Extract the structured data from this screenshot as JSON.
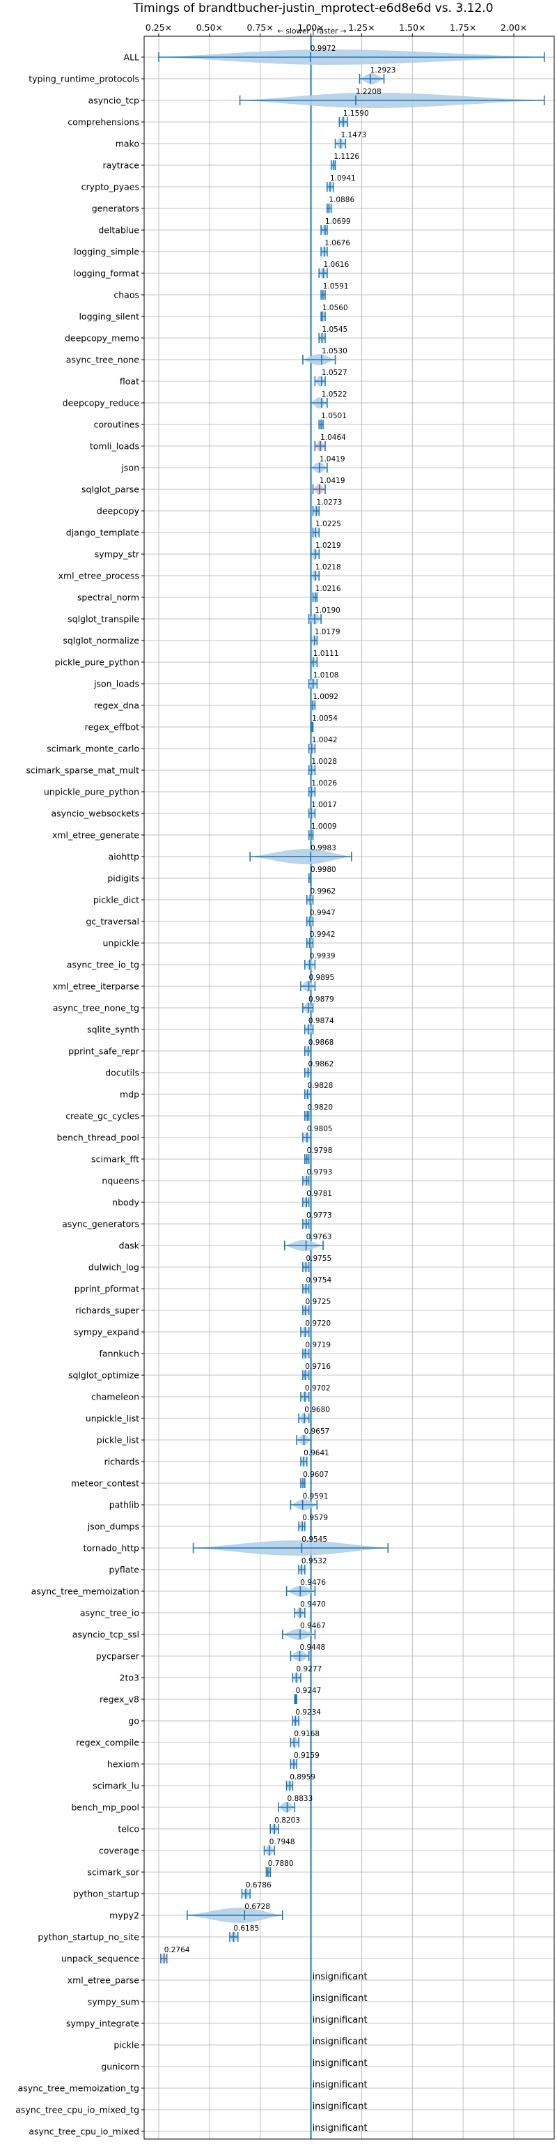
{
  "chart_data": {
    "type": "violin",
    "title": "Timings of brandtbucher-justin_mprotect-e6d8e6d vs. 3.12.0",
    "direction_label": "← slower | faster →",
    "xlim": [
      0.2,
      2.2
    ],
    "x_ticks": [
      {
        "value": 0.25,
        "label": "0.25×"
      },
      {
        "value": 0.5,
        "label": "0.50×"
      },
      {
        "value": 0.75,
        "label": "0.75×"
      },
      {
        "value": 1.0,
        "label": "1.00×"
      },
      {
        "value": 1.25,
        "label": "1.25×"
      },
      {
        "value": 1.5,
        "label": "1.50×"
      },
      {
        "value": 1.75,
        "label": "1.75×"
      },
      {
        "value": 2.0,
        "label": "2.00×"
      }
    ],
    "reference_line": 1.0,
    "insignificant_label": "insignificant",
    "benchmarks": [
      {
        "name": "ALL",
        "value": 0.9972,
        "label": "0.9972",
        "min": 0.25,
        "max": 2.15
      },
      {
        "name": "typing_runtime_protocols",
        "value": 1.2923,
        "label": "1.2923",
        "min": 1.24,
        "max": 1.36
      },
      {
        "name": "asyncio_tcp",
        "value": 1.2208,
        "label": "1.2208",
        "min": 0.65,
        "max": 2.15
      },
      {
        "name": "comprehensions",
        "value": 1.159,
        "label": "1.1590",
        "min": 1.14,
        "max": 1.18
      },
      {
        "name": "mako",
        "value": 1.1473,
        "label": "1.1473",
        "min": 1.12,
        "max": 1.17
      },
      {
        "name": "raytrace",
        "value": 1.1126,
        "label": "1.1126",
        "min": 1.1,
        "max": 1.12
      },
      {
        "name": "crypto_pyaes",
        "value": 1.0941,
        "label": "1.0941",
        "min": 1.08,
        "max": 1.11
      },
      {
        "name": "generators",
        "value": 1.0886,
        "label": "1.0886",
        "min": 1.08,
        "max": 1.1
      },
      {
        "name": "deltablue",
        "value": 1.0699,
        "label": "1.0699",
        "min": 1.05,
        "max": 1.08
      },
      {
        "name": "logging_simple",
        "value": 1.0676,
        "label": "1.0676",
        "min": 1.05,
        "max": 1.08
      },
      {
        "name": "logging_format",
        "value": 1.0616,
        "label": "1.0616",
        "min": 1.04,
        "max": 1.08
      },
      {
        "name": "chaos",
        "value": 1.0591,
        "label": "1.0591",
        "min": 1.05,
        "max": 1.07
      },
      {
        "name": "logging_silent",
        "value": 1.056,
        "label": "1.0560",
        "min": 1.05,
        "max": 1.07
      },
      {
        "name": "deepcopy_memo",
        "value": 1.0545,
        "label": "1.0545",
        "min": 1.04,
        "max": 1.07
      },
      {
        "name": "async_tree_none",
        "value": 1.053,
        "label": "1.0530",
        "min": 0.96,
        "max": 1.12
      },
      {
        "name": "float",
        "value": 1.0527,
        "label": "1.0527",
        "min": 1.02,
        "max": 1.07
      },
      {
        "name": "deepcopy_reduce",
        "value": 1.0522,
        "label": "1.0522",
        "min": 1.0,
        "max": 1.08
      },
      {
        "name": "coroutines",
        "value": 1.0501,
        "label": "1.0501",
        "min": 1.04,
        "max": 1.06
      },
      {
        "name": "tomli_loads",
        "value": 1.0464,
        "label": "1.0464",
        "min": 1.02,
        "max": 1.07
      },
      {
        "name": "json",
        "value": 1.0419,
        "label": "1.0419",
        "min": 1.0,
        "max": 1.08
      },
      {
        "name": "sqlglot_parse",
        "value": 1.0419,
        "label": "1.0419",
        "min": 1.01,
        "max": 1.07
      },
      {
        "name": "deepcopy",
        "value": 1.0273,
        "label": "1.0273",
        "min": 1.01,
        "max": 1.04
      },
      {
        "name": "django_template",
        "value": 1.0225,
        "label": "1.0225",
        "min": 1.01,
        "max": 1.04
      },
      {
        "name": "sympy_str",
        "value": 1.0219,
        "label": "1.0219",
        "min": 1.0,
        "max": 1.04
      },
      {
        "name": "xml_etree_process",
        "value": 1.0218,
        "label": "1.0218",
        "min": 1.0,
        "max": 1.04
      },
      {
        "name": "spectral_norm",
        "value": 1.0216,
        "label": "1.0216",
        "min": 1.01,
        "max": 1.03
      },
      {
        "name": "sqlglot_transpile",
        "value": 1.019,
        "label": "1.0190",
        "min": 0.99,
        "max": 1.05
      },
      {
        "name": "sqlglot_normalize",
        "value": 1.0179,
        "label": "1.0179",
        "min": 1.0,
        "max": 1.03
      },
      {
        "name": "pickle_pure_python",
        "value": 1.0111,
        "label": "1.0111",
        "min": 1.0,
        "max": 1.03
      },
      {
        "name": "json_loads",
        "value": 1.0108,
        "label": "1.0108",
        "min": 0.99,
        "max": 1.03
      },
      {
        "name": "regex_dna",
        "value": 1.0092,
        "label": "1.0092",
        "min": 1.0,
        "max": 1.02
      },
      {
        "name": "regex_effbot",
        "value": 1.0054,
        "label": "1.0054",
        "min": 1.0,
        "max": 1.01
      },
      {
        "name": "scimark_monte_carlo",
        "value": 1.0042,
        "label": "1.0042",
        "min": 0.99,
        "max": 1.02
      },
      {
        "name": "scimark_sparse_mat_mult",
        "value": 1.0028,
        "label": "1.0028",
        "min": 0.99,
        "max": 1.02
      },
      {
        "name": "unpickle_pure_python",
        "value": 1.0026,
        "label": "1.0026",
        "min": 0.99,
        "max": 1.02
      },
      {
        "name": "asyncio_websockets",
        "value": 1.0017,
        "label": "1.0017",
        "min": 0.99,
        "max": 1.02
      },
      {
        "name": "xml_etree_generate",
        "value": 1.0009,
        "label": "1.0009",
        "min": 0.99,
        "max": 1.01
      },
      {
        "name": "aiohttp",
        "value": 0.9983,
        "label": "0.9983",
        "min": 0.7,
        "max": 1.2
      },
      {
        "name": "pidigits",
        "value": 0.998,
        "label": "0.9980",
        "min": 0.99,
        "max": 1.0
      },
      {
        "name": "pickle_dict",
        "value": 0.9962,
        "label": "0.9962",
        "min": 0.98,
        "max": 1.01
      },
      {
        "name": "gc_traversal",
        "value": 0.9947,
        "label": "0.9947",
        "min": 0.98,
        "max": 1.01
      },
      {
        "name": "unpickle",
        "value": 0.9942,
        "label": "0.9942",
        "min": 0.98,
        "max": 1.01
      },
      {
        "name": "async_tree_io_tg",
        "value": 0.9939,
        "label": "0.9939",
        "min": 0.97,
        "max": 1.02
      },
      {
        "name": "xml_etree_iterparse",
        "value": 0.9895,
        "label": "0.9895",
        "min": 0.95,
        "max": 1.02
      },
      {
        "name": "async_tree_none_tg",
        "value": 0.9879,
        "label": "0.9879",
        "min": 0.96,
        "max": 1.01
      },
      {
        "name": "sqlite_synth",
        "value": 0.9874,
        "label": "0.9874",
        "min": 0.97,
        "max": 1.01
      },
      {
        "name": "pprint_safe_repr",
        "value": 0.9868,
        "label": "0.9868",
        "min": 0.97,
        "max": 1.0
      },
      {
        "name": "docutils",
        "value": 0.9862,
        "label": "0.9862",
        "min": 0.97,
        "max": 1.0
      },
      {
        "name": "mdp",
        "value": 0.9828,
        "label": "0.9828",
        "min": 0.97,
        "max": 1.0
      },
      {
        "name": "create_gc_cycles",
        "value": 0.982,
        "label": "0.9820",
        "min": 0.97,
        "max": 0.99
      },
      {
        "name": "bench_thread_pool",
        "value": 0.9805,
        "label": "0.9805",
        "min": 0.96,
        "max": 1.0
      },
      {
        "name": "scimark_fft",
        "value": 0.9798,
        "label": "0.9798",
        "min": 0.97,
        "max": 0.99
      },
      {
        "name": "nqueens",
        "value": 0.9793,
        "label": "0.9793",
        "min": 0.96,
        "max": 0.99
      },
      {
        "name": "nbody",
        "value": 0.9781,
        "label": "0.9781",
        "min": 0.96,
        "max": 0.99
      },
      {
        "name": "async_generators",
        "value": 0.9773,
        "label": "0.9773",
        "min": 0.96,
        "max": 0.99
      },
      {
        "name": "dask",
        "value": 0.9763,
        "label": "0.9763",
        "min": 0.87,
        "max": 1.06
      },
      {
        "name": "dulwich_log",
        "value": 0.9755,
        "label": "0.9755",
        "min": 0.96,
        "max": 0.99
      },
      {
        "name": "pprint_pformat",
        "value": 0.9754,
        "label": "0.9754",
        "min": 0.96,
        "max": 0.99
      },
      {
        "name": "richards_super",
        "value": 0.9725,
        "label": "0.9725",
        "min": 0.96,
        "max": 0.99
      },
      {
        "name": "sympy_expand",
        "value": 0.972,
        "label": "0.9720",
        "min": 0.95,
        "max": 0.99
      },
      {
        "name": "fannkuch",
        "value": 0.9719,
        "label": "0.9719",
        "min": 0.96,
        "max": 0.99
      },
      {
        "name": "sqlglot_optimize",
        "value": 0.9716,
        "label": "0.9716",
        "min": 0.96,
        "max": 0.99
      },
      {
        "name": "chameleon",
        "value": 0.9702,
        "label": "0.9702",
        "min": 0.95,
        "max": 0.99
      },
      {
        "name": "unpickle_list",
        "value": 0.968,
        "label": "0.9680",
        "min": 0.94,
        "max": 0.99
      },
      {
        "name": "pickle_list",
        "value": 0.9657,
        "label": "0.9657",
        "min": 0.93,
        "max": 1.0
      },
      {
        "name": "richards",
        "value": 0.9641,
        "label": "0.9641",
        "min": 0.95,
        "max": 0.98
      },
      {
        "name": "meteor_contest",
        "value": 0.9607,
        "label": "0.9607",
        "min": 0.95,
        "max": 0.97
      },
      {
        "name": "pathlib",
        "value": 0.9591,
        "label": "0.9591",
        "min": 0.9,
        "max": 1.03
      },
      {
        "name": "json_dumps",
        "value": 0.9579,
        "label": "0.9579",
        "min": 0.94,
        "max": 0.97
      },
      {
        "name": "tornado_http",
        "value": 0.9545,
        "label": "0.9545",
        "min": 0.42,
        "max": 1.38
      },
      {
        "name": "pyflate",
        "value": 0.9532,
        "label": "0.9532",
        "min": 0.94,
        "max": 0.97
      },
      {
        "name": "async_tree_memoization",
        "value": 0.9476,
        "label": "0.9476",
        "min": 0.88,
        "max": 1.02
      },
      {
        "name": "async_tree_io",
        "value": 0.947,
        "label": "0.9470",
        "min": 0.92,
        "max": 0.97
      },
      {
        "name": "asyncio_tcp_ssl",
        "value": 0.9467,
        "label": "0.9467",
        "min": 0.86,
        "max": 1.02
      },
      {
        "name": "pycparser",
        "value": 0.9448,
        "label": "0.9448",
        "min": 0.9,
        "max": 0.99
      },
      {
        "name": "2to3",
        "value": 0.9277,
        "label": "0.9277",
        "min": 0.91,
        "max": 0.95
      },
      {
        "name": "regex_v8",
        "value": 0.9247,
        "label": "0.9247",
        "min": 0.92,
        "max": 0.93
      },
      {
        "name": "go",
        "value": 0.9234,
        "label": "0.9234",
        "min": 0.91,
        "max": 0.94
      },
      {
        "name": "regex_compile",
        "value": 0.9168,
        "label": "0.9168",
        "min": 0.9,
        "max": 0.94
      },
      {
        "name": "hexiom",
        "value": 0.9159,
        "label": "0.9159",
        "min": 0.9,
        "max": 0.93
      },
      {
        "name": "scimark_lu",
        "value": 0.8959,
        "label": "0.8959",
        "min": 0.88,
        "max": 0.91
      },
      {
        "name": "bench_mp_pool",
        "value": 0.8833,
        "label": "0.8833",
        "min": 0.84,
        "max": 0.92
      },
      {
        "name": "telco",
        "value": 0.8203,
        "label": "0.8203",
        "min": 0.8,
        "max": 0.84
      },
      {
        "name": "coverage",
        "value": 0.7948,
        "label": "0.7948",
        "min": 0.77,
        "max": 0.82
      },
      {
        "name": "scimark_sor",
        "value": 0.788,
        "label": "0.7880",
        "min": 0.78,
        "max": 0.8
      },
      {
        "name": "python_startup",
        "value": 0.6786,
        "label": "0.6786",
        "min": 0.66,
        "max": 0.7
      },
      {
        "name": "mypy2",
        "value": 0.6728,
        "label": "0.6728",
        "min": 0.39,
        "max": 0.86
      },
      {
        "name": "python_startup_no_site",
        "value": 0.6185,
        "label": "0.6185",
        "min": 0.6,
        "max": 0.64
      },
      {
        "name": "unpack_sequence",
        "value": 0.2764,
        "label": "0.2764",
        "min": 0.26,
        "max": 0.29
      },
      {
        "name": "xml_etree_parse",
        "insignificant": true
      },
      {
        "name": "sympy_sum",
        "insignificant": true
      },
      {
        "name": "sympy_integrate",
        "insignificant": true
      },
      {
        "name": "pickle",
        "insignificant": true
      },
      {
        "name": "gunicorn",
        "insignificant": true
      },
      {
        "name": "async_tree_memoization_tg",
        "insignificant": true
      },
      {
        "name": "async_tree_cpu_io_mixed_tg",
        "insignificant": true
      },
      {
        "name": "async_tree_cpu_io_mixed",
        "insignificant": true
      }
    ],
    "colors": {
      "line": "#1f77b4",
      "violin_fill": "#b3cfe8",
      "highlight_fill": "#f2b8c0",
      "grid": "#b0b0b0"
    },
    "highlighted": [
      "tomli_loads",
      "sqlglot_parse",
      "unpack_sequence"
    ]
  }
}
